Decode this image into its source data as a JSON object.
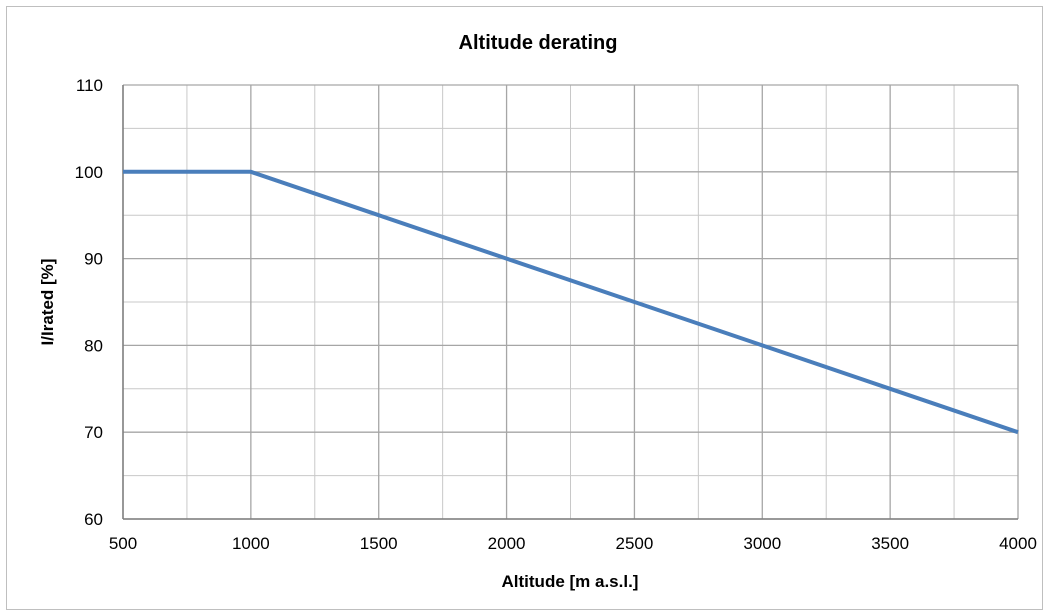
{
  "chart_data": {
    "type": "line",
    "title": "Altitude derating",
    "xlabel": "Altitude [m a.s.l.]",
    "ylabel": "I/Irated [%]",
    "xlim": [
      500,
      4000
    ],
    "ylim": [
      60,
      110
    ],
    "x_ticks": [
      500,
      1000,
      1500,
      2000,
      2500,
      3000,
      3500,
      4000
    ],
    "y_ticks": [
      60,
      70,
      80,
      90,
      100,
      110
    ],
    "x_minor_step": 250,
    "y_minor_step": 5,
    "grid": true,
    "legend": "none",
    "series": [
      {
        "x": [
          500,
          1000,
          1500,
          2000,
          2500,
          3000,
          3500,
          4000
        ],
        "y": [
          100,
          100,
          95,
          90,
          85,
          80,
          75,
          70
        ],
        "color": "#4a7ebb"
      }
    ]
  },
  "colors": {
    "line": "#4a7ebb",
    "grid": "#a6a6a6",
    "frame": "#bfbfbf"
  }
}
